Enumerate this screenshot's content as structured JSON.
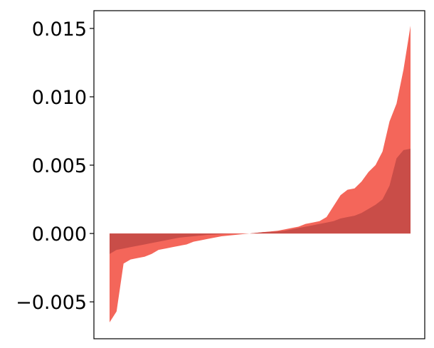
{
  "chart_data": {
    "type": "area",
    "title": "",
    "xlabel": "",
    "ylabel": "",
    "ylim": [
      -0.0077,
      0.0163
    ],
    "y_ticks": [
      -0.005,
      0.0,
      0.005,
      0.01,
      0.015
    ],
    "y_tick_labels": [
      "−0.005",
      "0.000",
      "0.005",
      "0.010",
      "0.015"
    ],
    "x_ticks_visible": false,
    "grid": false,
    "legend": "none",
    "baseline": 0,
    "series": [
      {
        "color": "#f4665a",
        "values": [
          -0.0065,
          -0.0057,
          -0.0022,
          -0.0019,
          -0.0018,
          -0.0017,
          -0.0015,
          -0.0012,
          -0.0011,
          -0.001,
          -0.0009,
          -0.0008,
          -0.0006,
          -0.0005,
          -0.0004,
          -0.0003,
          -0.0002,
          -0.00015,
          -0.0001,
          -5e-05,
          0.0,
          5e-05,
          0.0001,
          0.00015,
          0.0002,
          0.0003,
          0.0004,
          0.0005,
          0.0007,
          0.0008,
          0.0009,
          0.0012,
          0.002,
          0.0028,
          0.0032,
          0.0033,
          0.0038,
          0.0045,
          0.005,
          0.006,
          0.0082,
          0.0095,
          0.012,
          0.0152
        ]
      },
      {
        "color": "#c94d48",
        "values": [
          -0.0015,
          -0.0012,
          -0.0011,
          -0.001,
          -0.0009,
          -0.0008,
          -0.0007,
          -0.0006,
          -0.0005,
          -0.0004,
          -0.0003,
          -0.00025,
          -0.0002,
          -0.00015,
          -0.0001,
          -8e-05,
          -5e-05,
          -3e-05,
          -2e-05,
          -1e-05,
          0.0,
          5e-05,
          0.0001,
          0.00012,
          0.00015,
          0.0002,
          0.0003,
          0.0004,
          0.0005,
          0.0006,
          0.0007,
          0.0008,
          0.0009,
          0.0011,
          0.0012,
          0.0013,
          0.0015,
          0.0018,
          0.0021,
          0.0025,
          0.0035,
          0.0055,
          0.0061,
          0.0062
        ]
      }
    ]
  }
}
